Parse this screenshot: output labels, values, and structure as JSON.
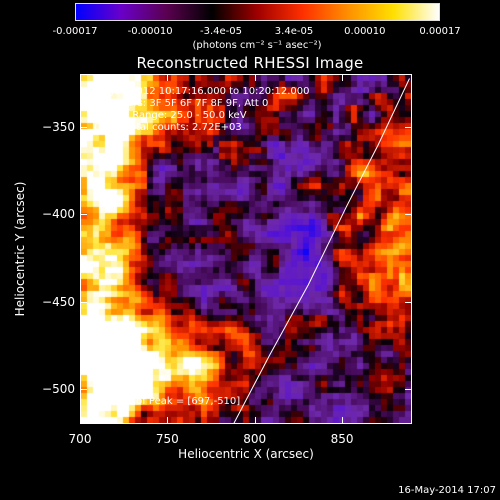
{
  "colorbar": {
    "tick_labels": [
      "-0.00017",
      "-0.00010",
      "-3.4e-05",
      "3.4e-05",
      "0.00010",
      "0.00017"
    ],
    "tick_values": [
      -0.00017,
      -0.0001,
      -3.4e-05,
      3.4e-05,
      0.0001,
      0.00017
    ],
    "range": [
      -0.00017,
      0.00017
    ],
    "units": "(photons cm⁻² s⁻¹ asec⁻²)",
    "colors": [
      "#0000ff",
      "#6a00c8",
      "#5a0050",
      "#000000",
      "#a00000",
      "#ff3000",
      "#ff9000",
      "#ffe000",
      "#ffffff"
    ]
  },
  "chart_data": {
    "type": "heatmap",
    "title": "Reconstructed RHESSI Image",
    "xlabel": "Heliocentric X (arcsec)",
    "ylabel": "Heliocentric Y (arcsec)",
    "xlim": [
      700,
      890
    ],
    "ylim": [
      -520,
      -320
    ],
    "x_ticks": [
      700,
      750,
      800,
      850
    ],
    "y_ticks": [
      -350,
      -400,
      -450,
      -500
    ],
    "annotations": [
      "18-Jun-2012 10:17:16.000 to 10:20:12.000",
      "Detectors: 3F 5F 6F 7F 8F 9F, Att 0",
      "Energy Range: 25.0 - 50.0 keV",
      "Clean    Total counts: 2.72E+03"
    ],
    "peak_label": "Position of Peak = [697,-510]",
    "limb_curve": {
      "x": [
        787,
        808,
        830,
        852,
        870,
        888
      ],
      "y": [
        -520,
        -480,
        -440,
        -395,
        -360,
        -322
      ]
    }
  },
  "footer": {
    "timestamp": "16-May-2014 17:07"
  }
}
